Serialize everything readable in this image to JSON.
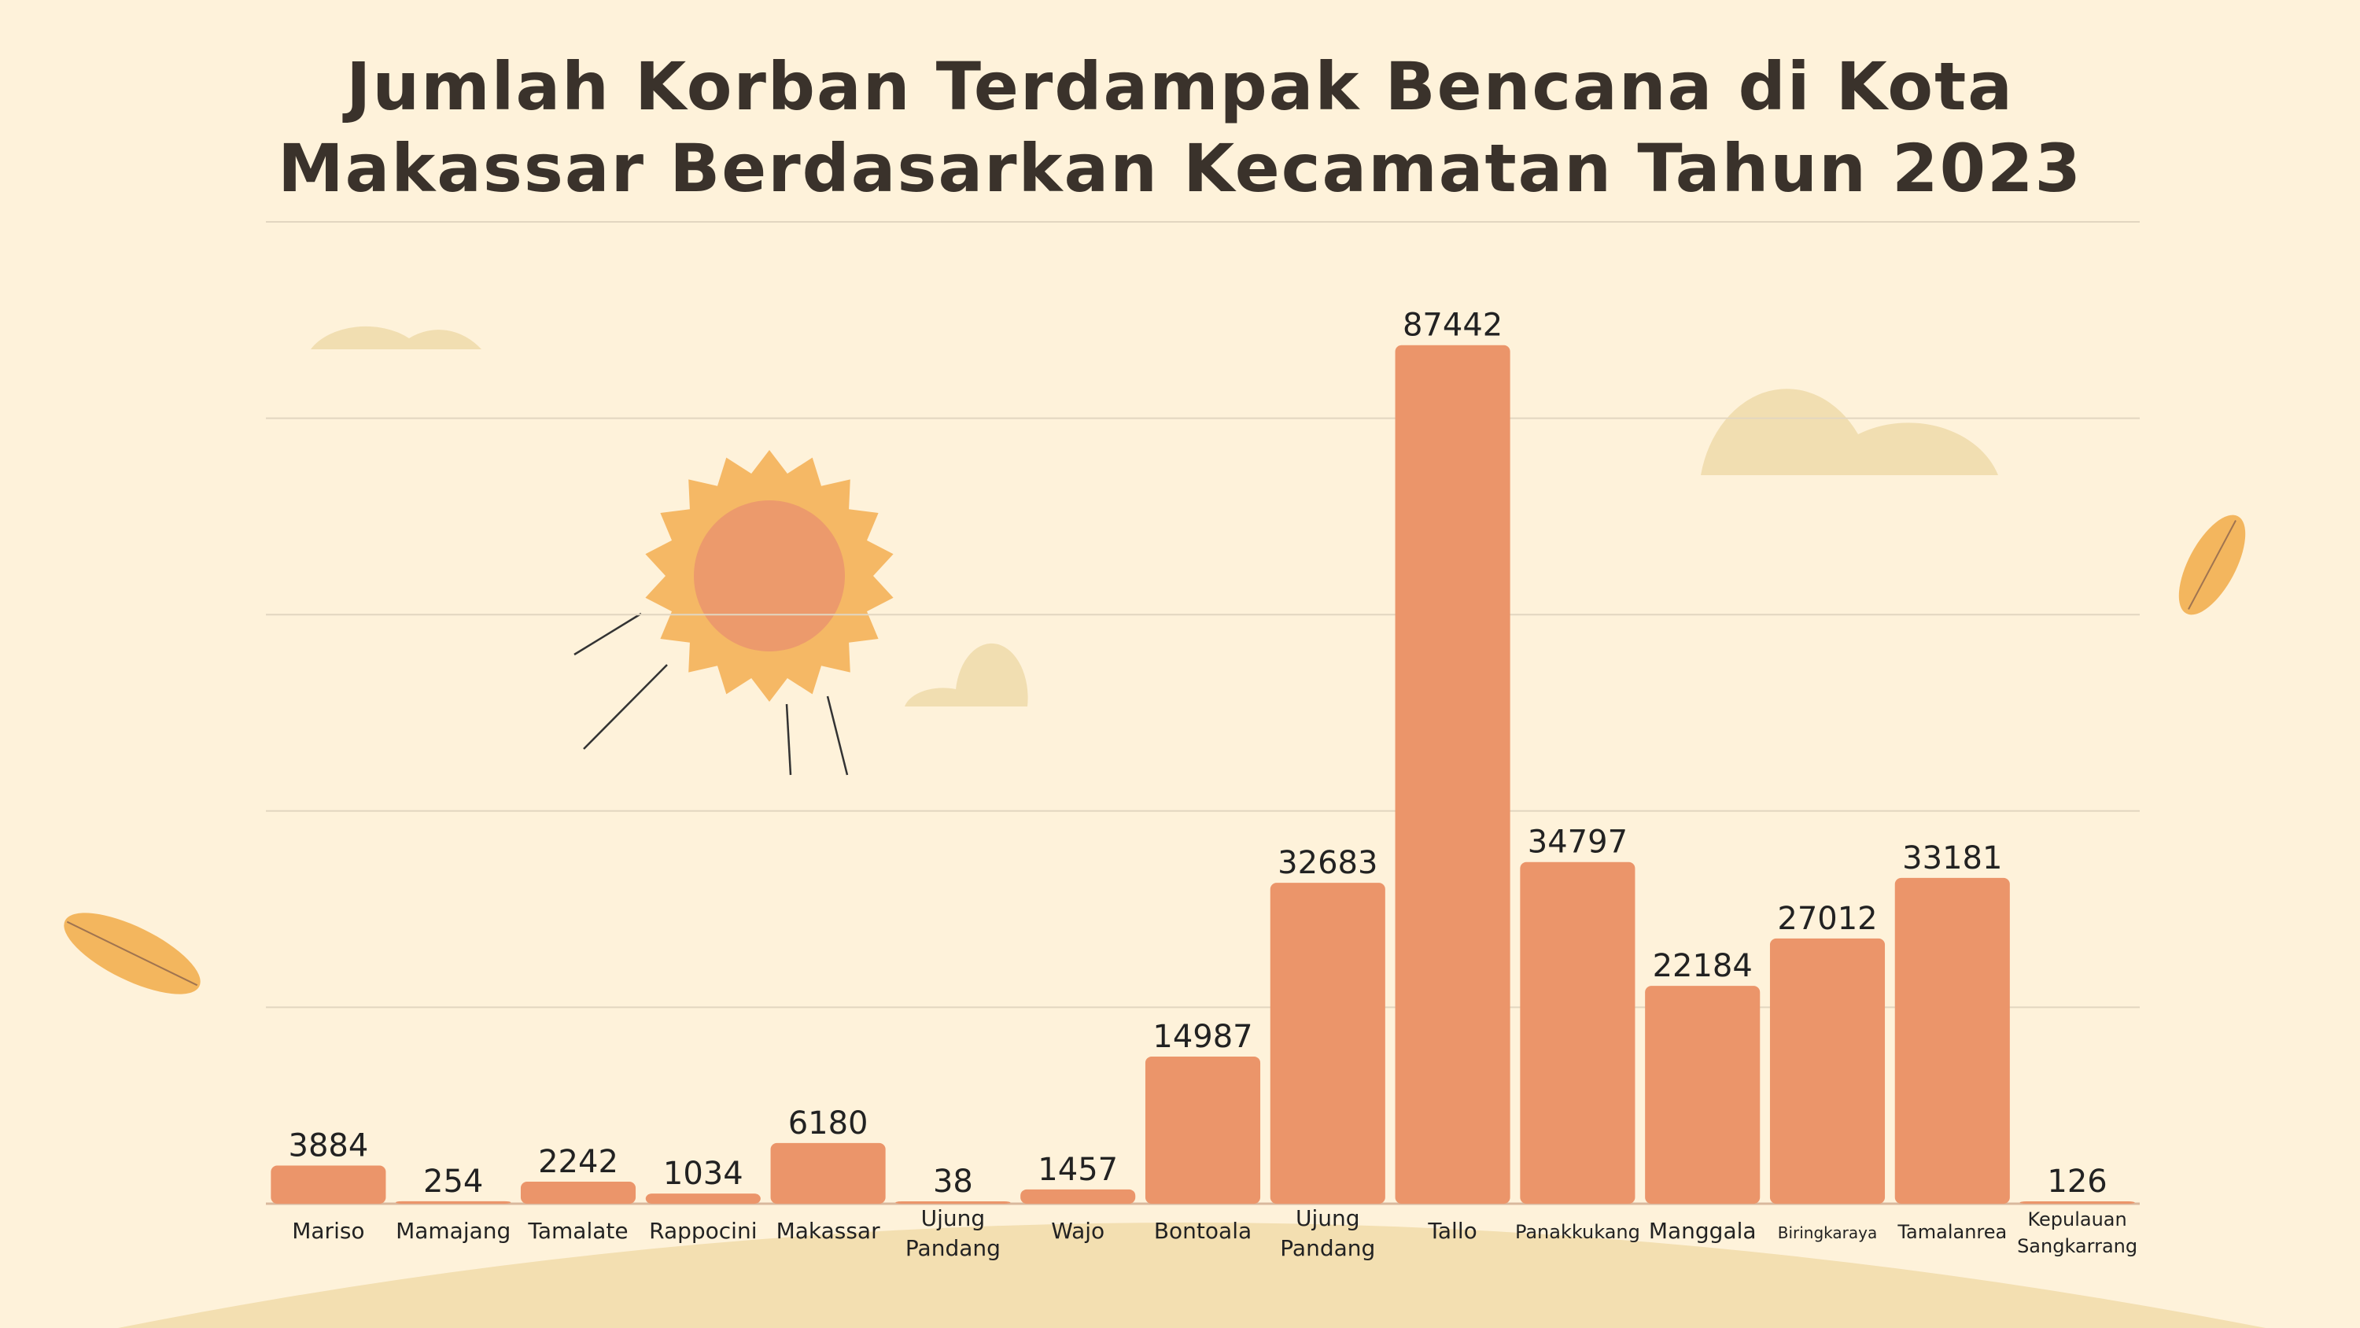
{
  "colors": {
    "background": "#fef2da",
    "bar": "#eb956a",
    "grid": "#e2d6c0",
    "hill": "#f3dfb1",
    "cloud": "#f1deb1",
    "sun_outer": "#f5b865",
    "sun_inner": "#ec9a6c",
    "leaf": "#f3b65e"
  },
  "chart_data": {
    "type": "bar",
    "title": "Jumlah Korban Terdampak Bencana di Kota Makassar Berdasarkan Kecamatan Tahun 2023",
    "title_lines": [
      "Jumlah Korban Terdampak Bencana di Kota",
      "Makassar Berdasarkan Kecamatan Tahun 2023"
    ],
    "categories": [
      "Mariso",
      "Mamajang",
      "Tamalate",
      "Rappocini",
      "Makassar",
      "Ujung Pandang",
      "Wajo",
      "Bontoala",
      "Ujung Pandang",
      "Tallo",
      "Panakkukang",
      "Manggala",
      "Biringkaraya",
      "Tamalanrea",
      "Kepulauan Sangkarrang"
    ],
    "category_lines": [
      [
        "Mariso"
      ],
      [
        "Mamajang"
      ],
      [
        "Tamalate"
      ],
      [
        "Rappocini"
      ],
      [
        "Makassar"
      ],
      [
        "Ujung",
        "Pandang"
      ],
      [
        "Wajo"
      ],
      [
        "Bontoala"
      ],
      [
        "Ujung",
        "Pandang"
      ],
      [
        "Tallo"
      ],
      [
        "Panakkukang"
      ],
      [
        "Manggala"
      ],
      [
        "Biringkaraya"
      ],
      [
        "Tamalanrea"
      ],
      [
        "Kepulauan",
        "Sangkarrang"
      ]
    ],
    "values": [
      3884,
      254,
      2242,
      1034,
      6180,
      38,
      1457,
      14987,
      32683,
      87442,
      34797,
      22184,
      27012,
      33181,
      126
    ],
    "ylim": [
      0,
      100000
    ],
    "grid": true,
    "legend": "none",
    "xlabel": "",
    "ylabel": ""
  }
}
